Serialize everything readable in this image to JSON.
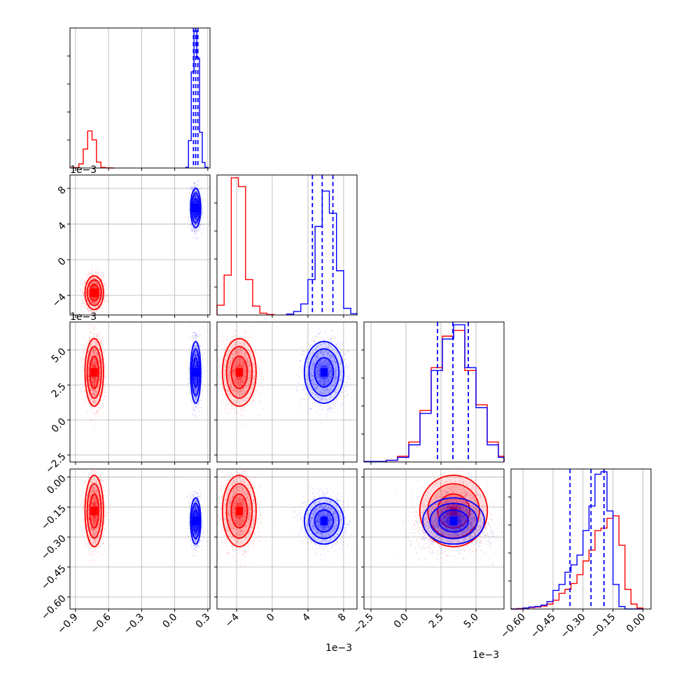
{
  "colors": {
    "series_a": "#ff0000",
    "series_b": "#0000ff",
    "grid": "#b0b0b0",
    "frame": "#7f7f7f"
  },
  "chart_data": {
    "type": "corner",
    "grid": true,
    "params": [
      {
        "range": [
          -0.95,
          0.32
        ],
        "ticks": [
          -0.9,
          -0.6,
          -0.3,
          0.0,
          0.3
        ],
        "tick_labels": [
          "−0.9",
          "−0.6",
          "−0.3",
          "0.0",
          "0.3"
        ],
        "multiplier": ""
      },
      {
        "range": [
          -6.2,
          9.5
        ],
        "ticks": [
          -4,
          0,
          4,
          8
        ],
        "tick_labels": [
          "−4",
          "0",
          "4",
          "8"
        ],
        "multiplier": "1e−3"
      },
      {
        "range": [
          -3.0,
          7.0
        ],
        "ticks": [
          -2.5,
          0.0,
          2.5,
          5.0
        ],
        "tick_labels": [
          "−2.5",
          "0.0",
          "2.5",
          "5.0"
        ],
        "multiplier": "1e−3"
      },
      {
        "range": [
          -0.66,
          0.04
        ],
        "ticks": [
          -0.6,
          -0.45,
          -0.3,
          -0.15,
          0.0
        ],
        "tick_labels": [
          "−0.60",
          "−0.45",
          "−0.30",
          "−0.15",
          "0.00"
        ],
        "multiplier": ""
      }
    ],
    "series": [
      {
        "color": "red",
        "mean": [
          -0.73,
          -3.7,
          3.4,
          -0.17
        ],
        "sd": [
          0.04,
          0.9,
          1.15,
          0.085
        ],
        "hist": [
          {
            "edges": [
              -0.95,
              -0.91,
              -0.87,
              -0.83,
              -0.79,
              -0.75,
              -0.71,
              -0.67,
              -0.63,
              -0.59,
              -0.55
            ],
            "counts": [
              1,
              3,
              30,
              138,
              270,
              205,
              43,
              4,
              1,
              0
            ]
          },
          {
            "edges": [
              -7.0,
              -6.2,
              -5.4,
              -4.6,
              -3.8,
              -3.0,
              -2.2,
              -1.4,
              -0.6,
              0.2
            ],
            "counts": [
              3,
              22,
              90,
              310,
              290,
              80,
              20,
              4,
              1
            ]
          },
          {
            "edges": [
              -3.0,
              -2.2,
              -1.4,
              -0.6,
              0.2,
              1.0,
              1.8,
              2.6,
              3.4,
              4.2,
              5.0,
              5.8,
              6.6,
              7.0
            ],
            "counts": [
              1,
              1,
              3,
              10,
              35,
              90,
              165,
              220,
              230,
              160,
              100,
              35,
              10
            ]
          },
          {
            "edges": [
              -0.66,
              -0.63,
              -0.6,
              -0.57,
              -0.54,
              -0.51,
              -0.48,
              -0.45,
              -0.42,
              -0.39,
              -0.36,
              -0.33,
              -0.3,
              -0.27,
              -0.24,
              -0.21,
              -0.18,
              -0.15,
              -0.12,
              -0.09,
              -0.06,
              -0.03,
              0.0
            ],
            "counts": [
              0,
              1,
              2,
              3,
              4,
              6,
              10,
              18,
              32,
              40,
              52,
              70,
              98,
              120,
              160,
              165,
              185,
              190,
              130,
              40,
              10,
              2
            ]
          }
        ],
        "quantiles": []
      },
      {
        "color": "blue",
        "mean": [
          0.19,
          5.8,
          3.4,
          -0.22
        ],
        "sd": [
          0.022,
          1.05,
          1.05,
          0.055
        ],
        "hist": [
          {
            "edges": [
              0.1,
              0.125,
              0.15,
              0.175,
              0.2,
              0.225,
              0.25,
              0.275,
              0.3
            ],
            "counts": [
              5,
              200,
              700,
              1000,
              800,
              260,
              40,
              5
            ]
          },
          {
            "edges": [
              1.6,
              2.4,
              3.2,
              4.0,
              4.8,
              5.6,
              6.4,
              7.2,
              8.0,
              8.8,
              9.6
            ],
            "counts": [
              2,
              8,
              25,
              80,
              200,
              280,
              230,
              100,
              15,
              3
            ]
          },
          {
            "edges": [
              -3.0,
              -2.2,
              -1.4,
              -0.6,
              0.2,
              1.0,
              1.8,
              2.6,
              3.4,
              4.2,
              5.0,
              5.8,
              6.6,
              7.0
            ],
            "counts": [
              1,
              1,
              3,
              8,
              30,
              85,
              160,
              215,
              240,
              165,
              95,
              30,
              8
            ]
          },
          {
            "edges": [
              -0.66,
              -0.63,
              -0.6,
              -0.57,
              -0.54,
              -0.51,
              -0.48,
              -0.45,
              -0.42,
              -0.39,
              -0.36,
              -0.33,
              -0.3,
              -0.27,
              -0.24,
              -0.21,
              -0.18,
              -0.15,
              -0.12,
              -0.09,
              -0.06,
              -0.03,
              0.0
            ],
            "counts": [
              0,
              0,
              2,
              4,
              5,
              8,
              15,
              38,
              50,
              75,
              90,
              110,
              160,
              210,
              275,
              280,
              200,
              50,
              5,
              0,
              0,
              0
            ]
          }
        ],
        "quantiles": [
          [
            0.17,
            0.19,
            0.21
          ],
          [
            4.5,
            5.6,
            6.8
          ],
          [
            2.25,
            3.35,
            4.45
          ],
          [
            -0.365,
            -0.26,
            -0.195
          ]
        ]
      }
    ],
    "points_per_panel": 1600
  }
}
